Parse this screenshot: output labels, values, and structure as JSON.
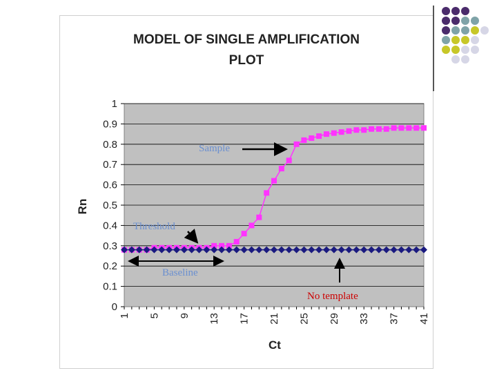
{
  "chart_data": {
    "type": "line",
    "title": "MODEL OF SINGLE AMPLIFICATION PLOT",
    "xlabel": "Ct",
    "ylabel": "Rn",
    "ylim": [
      0,
      1
    ],
    "yticks": [
      "0",
      "0.1",
      "0.2",
      "0.3",
      "0.4",
      "0.5",
      "0.6",
      "0.7",
      "0.8",
      "0.9",
      "1"
    ],
    "xlim": [
      1,
      41
    ],
    "xticks": [
      "1",
      "5",
      "9",
      "13",
      "17",
      "21",
      "25",
      "29",
      "33",
      "37",
      "41"
    ],
    "grid": true,
    "legend": "none",
    "series": [
      {
        "color": "#ff33ff",
        "marker": "square",
        "x": [
          1,
          2,
          3,
          4,
          5,
          6,
          7,
          8,
          9,
          10,
          11,
          12,
          13,
          14,
          15,
          16,
          17,
          18,
          19,
          20,
          21,
          22,
          23,
          24,
          25,
          26,
          27,
          28,
          29,
          30,
          31,
          32,
          33,
          34,
          35,
          36,
          37,
          38,
          39,
          40,
          41
        ],
        "values": [
          0.28,
          0.28,
          0.28,
          0.28,
          0.29,
          0.29,
          0.29,
          0.29,
          0.29,
          0.29,
          0.29,
          0.29,
          0.3,
          0.3,
          0.3,
          0.32,
          0.36,
          0.4,
          0.44,
          0.56,
          0.62,
          0.68,
          0.72,
          0.8,
          0.82,
          0.83,
          0.84,
          0.85,
          0.855,
          0.86,
          0.865,
          0.87,
          0.87,
          0.875,
          0.875,
          0.875,
          0.88,
          0.88,
          0.88,
          0.88,
          0.88
        ]
      },
      {
        "color": "#1a1a80",
        "marker": "diamond",
        "x": [
          1,
          2,
          3,
          4,
          5,
          6,
          7,
          8,
          9,
          10,
          11,
          12,
          13,
          14,
          15,
          16,
          17,
          18,
          19,
          20,
          21,
          22,
          23,
          24,
          25,
          26,
          27,
          28,
          29,
          30,
          31,
          32,
          33,
          34,
          35,
          36,
          37,
          38,
          39,
          40,
          41
        ],
        "values": [
          0.28,
          0.28,
          0.28,
          0.28,
          0.28,
          0.28,
          0.28,
          0.28,
          0.28,
          0.28,
          0.28,
          0.28,
          0.28,
          0.28,
          0.28,
          0.28,
          0.28,
          0.28,
          0.28,
          0.28,
          0.28,
          0.28,
          0.28,
          0.28,
          0.28,
          0.28,
          0.28,
          0.28,
          0.28,
          0.28,
          0.28,
          0.28,
          0.28,
          0.28,
          0.28,
          0.28,
          0.28,
          0.28,
          0.28,
          0.28,
          0.28
        ]
      }
    ],
    "annotations": {
      "sample": "Sample",
      "threshold": "Threshold",
      "baseline": "Baseline",
      "no_template": "No template"
    },
    "colors": {
      "plot_bg": "#c0c0c0",
      "annotation_blue": "#6a8fd0",
      "annotation_red": "#cc0000",
      "arrow": "#000000"
    }
  },
  "decoration": {
    "dot_colors": {
      "purple": "#4a2b6b",
      "teal": "#7fa3a8",
      "olive": "#c7c728",
      "lavender": "#d6d6e6"
    }
  }
}
